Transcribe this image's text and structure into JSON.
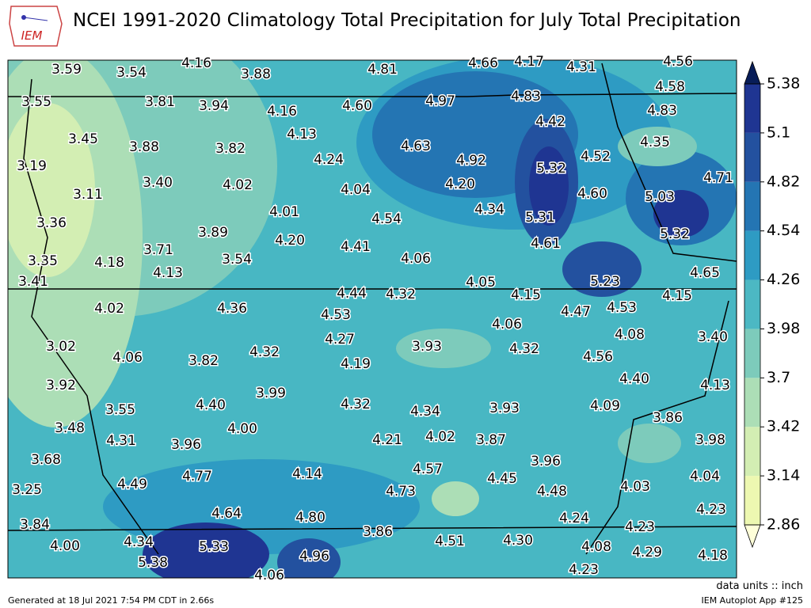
{
  "header": {
    "logo": "IEM",
    "title": "NCEI 1991-2020 Climatology Total Precipitation for July Total Precipitation"
  },
  "map": {
    "labels": [
      "3.59",
      "3.54",
      "4.16",
      "3.88",
      "4.81",
      "4.66",
      "4.17",
      "4.31",
      "4.56",
      "3.55",
      "3.81",
      "3.94",
      "4.16",
      "4.60",
      "4.97",
      "4.83",
      "4.58",
      "4.83",
      "3.45",
      "3.88",
      "3.82",
      "4.13",
      "4.63",
      "4.42",
      "4.35",
      "4.52",
      "3.19",
      "4.24",
      "4.92",
      "5.32",
      "4.71",
      "3.11",
      "3.40",
      "4.02",
      "4.04",
      "4.20",
      "4.60",
      "5.03",
      "3.36",
      "4.01",
      "4.54",
      "4.34",
      "5.31",
      "3.89",
      "4.20",
      "5.32",
      "4.61",
      "3.71",
      "4.41",
      "3.35",
      "4.18",
      "3.54",
      "4.06",
      "4.13",
      "3.41",
      "4.05",
      "5.23",
      "4.65",
      "4.44",
      "4.32",
      "4.15",
      "4.15",
      "4.02",
      "4.36",
      "4.53",
      "4.47",
      "4.53",
      "4.06",
      "4.08",
      "3.40",
      "4.27",
      "3.02",
      "3.93",
      "4.32",
      "4.32",
      "4.56",
      "4.06",
      "3.82",
      "4.19",
      "4.40",
      "3.92",
      "4.13",
      "3.99",
      "3.55",
      "4.40",
      "4.32",
      "4.34",
      "3.93",
      "4.09",
      "3.86",
      "3.48",
      "4.00",
      "4.31",
      "3.96",
      "4.21",
      "4.02",
      "3.87",
      "3.98",
      "3.68",
      "3.96",
      "4.57",
      "4.77",
      "4.14",
      "4.45",
      "4.49",
      "4.04",
      "3.25",
      "4.73",
      "4.48",
      "4.03",
      "4.64",
      "4.80",
      "4.23",
      "4.24",
      "3.84",
      "3.86",
      "4.23",
      "4.00",
      "4.34",
      "5.33",
      "4.51",
      "4.30",
      "4.08",
      "5.38",
      "4.96",
      "4.29",
      "4.18",
      "4.06",
      "4.23"
    ]
  },
  "colorbar": {
    "range": [
      2.86,
      5.38
    ],
    "ticks": [
      2.86,
      3.14,
      3.42,
      3.7,
      3.98,
      4.26,
      4.54,
      4.82,
      5.1,
      5.38
    ],
    "colors": [
      "#edf8b1",
      "#d3eeb3",
      "#acdeb6",
      "#7dcbbb",
      "#4cb8c3",
      "#2e9bc3",
      "#2475b3",
      "#23519f",
      "#1f3592"
    ],
    "over": "#081d58",
    "under": "#ffffd9"
  },
  "footer": {
    "generated": "Generated at 18 Jul 2021 7:54 PM CDT in 2.66s",
    "units": "data units :: inch",
    "app": "IEM Autoplot App #125"
  }
}
